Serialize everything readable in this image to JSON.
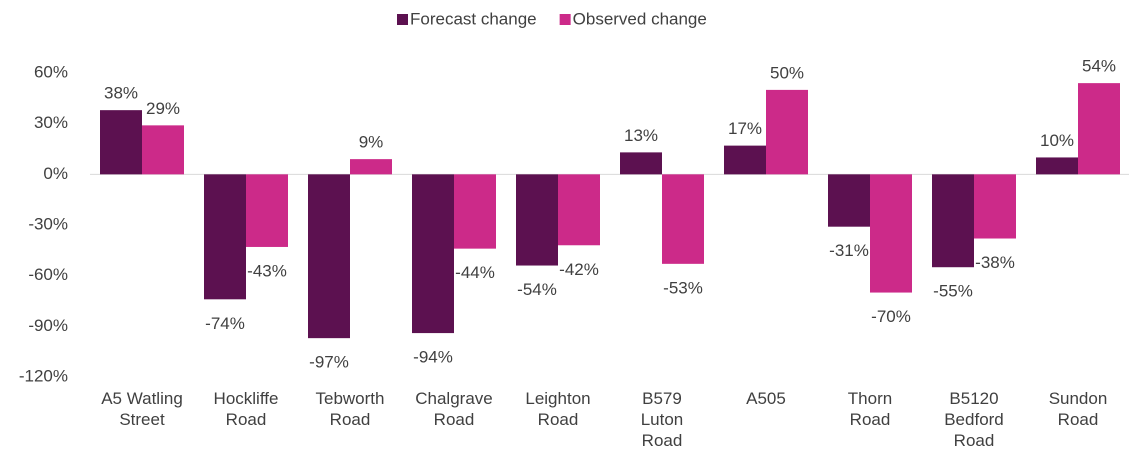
{
  "chart_data": {
    "type": "bar",
    "categories": [
      "A5 Watling\nStreet",
      "Hockliffe\nRoad",
      "Tebworth\nRoad",
      "Chalgrave\nRoad",
      "Leighton\nRoad",
      "B579\nLuton\nRoad",
      "A505",
      "Thorn\nRoad",
      "B5120\nBedford\nRoad",
      "Sundon\nRoad"
    ],
    "series": [
      {
        "name": "Forecast change",
        "color": "#5c1150",
        "values": [
          38,
          -74,
          -97,
          -94,
          -54,
          13,
          17,
          -31,
          -55,
          10
        ],
        "value_labels": [
          "38%",
          "-74%",
          "-97%",
          "-94%",
          "-54%",
          "13%",
          "17%",
          "-31%",
          "-55%",
          "10%"
        ]
      },
      {
        "name": "Observed change",
        "color": "#cc2a89",
        "values": [
          29,
          -43,
          9,
          -44,
          -42,
          -53,
          50,
          -70,
          -38,
          54
        ],
        "value_labels": [
          "29%",
          "-43%",
          "9%",
          "-44%",
          "-42%",
          "-53%",
          "50%",
          "-70%",
          "-38%",
          "54%"
        ]
      }
    ],
    "ylim": [
      -120,
      60
    ],
    "yticks": [
      {
        "value": 60,
        "label": "60%"
      },
      {
        "value": 30,
        "label": "30%"
      },
      {
        "value": 0,
        "label": "0%"
      },
      {
        "value": -30,
        "label": "-30%"
      },
      {
        "value": -60,
        "label": "-60%"
      },
      {
        "value": -90,
        "label": "-90%"
      },
      {
        "value": -120,
        "label": "-120%"
      }
    ],
    "legend": "top",
    "grid": false
  }
}
